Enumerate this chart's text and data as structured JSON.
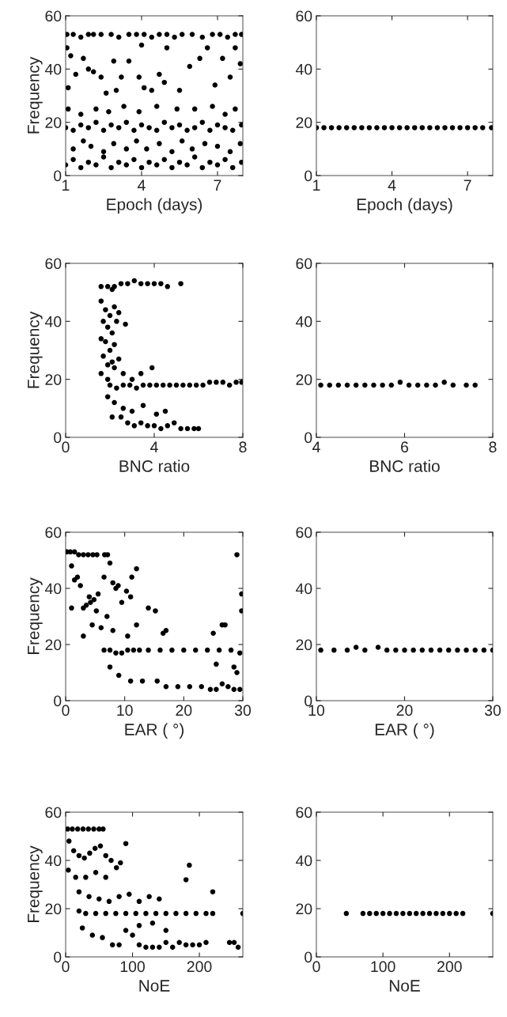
{
  "chart_data": [
    {
      "type": "scatter",
      "xlabel": "Epoch (days)",
      "ylabel": "Frequency",
      "xlim": [
        1,
        8
      ],
      "xticks": [
        1,
        4,
        7
      ],
      "ylim": [
        0,
        60
      ],
      "yticks": [
        0,
        20,
        40,
        60
      ],
      "marker": "circle",
      "series": [
        {
          "color": "#000000",
          "x": [
            1.05,
            1.3,
            1.6,
            1.9,
            2.1,
            2.4,
            2.8,
            3.1,
            3.5,
            3.8,
            4.1,
            4.4,
            4.7,
            5.0,
            5.3,
            5.6,
            6.0,
            6.4,
            6.8,
            7.1,
            7.4,
            7.7,
            7.95,
            1.05,
            1.1,
            1.2,
            1.4,
            1.7,
            1.9,
            2.1,
            2.4,
            2.6,
            2.9,
            3.2,
            3.5,
            3.9,
            4.0,
            4.1,
            4.4,
            4.7,
            4.9,
            5.0,
            5.5,
            5.9,
            6.3,
            6.6,
            6.9,
            7.2,
            7.5,
            7.7,
            7.9,
            3.0,
            1.1,
            1.6,
            2.2,
            2.7,
            3.3,
            3.9,
            4.6,
            5.4,
            6.1,
            6.8,
            7.3,
            7.7,
            1.0,
            1.3,
            1.6,
            1.9,
            2.2,
            2.5,
            2.8,
            3.1,
            3.4,
            3.7,
            4.0,
            4.3,
            4.6,
            4.9,
            5.2,
            5.5,
            5.8,
            6.1,
            6.4,
            6.7,
            7.0,
            7.3,
            7.6,
            7.95,
            1.3,
            1.7,
            2.0,
            2.5,
            2.9,
            3.4,
            3.8,
            4.2,
            4.7,
            5.2,
            5.6,
            6.0,
            6.5,
            7.0,
            7.5,
            7.9,
            1.0,
            1.3,
            1.6,
            1.9,
            2.2,
            2.5,
            2.8,
            3.1,
            3.4,
            3.7,
            4.0,
            4.3,
            4.6,
            4.9,
            5.2,
            5.5,
            5.8,
            6.1,
            6.4,
            6.7,
            7.0,
            7.3,
            7.6,
            7.95
          ],
          "values": [
            53,
            53,
            52,
            53,
            53,
            53,
            53,
            52,
            53,
            53,
            53,
            52,
            53,
            53,
            52,
            53,
            53,
            52,
            53,
            53,
            52,
            53,
            53,
            48,
            33,
            45,
            38,
            44,
            40,
            39,
            37,
            31,
            43,
            37,
            43,
            37,
            49,
            33,
            32,
            38,
            35,
            48,
            32,
            41,
            44,
            48,
            34,
            44,
            37,
            48,
            42,
            32,
            25,
            23,
            25,
            24,
            26,
            24,
            26,
            25,
            25,
            26,
            23,
            25,
            18,
            17,
            19,
            18,
            20,
            17,
            19,
            18,
            20,
            17,
            19,
            18,
            17,
            20,
            18,
            19,
            17,
            18,
            20,
            17,
            19,
            18,
            17,
            19,
            10,
            13,
            11,
            9,
            12,
            10,
            13,
            10,
            12,
            9,
            13,
            10,
            12,
            11,
            9,
            12,
            4,
            6,
            3,
            5,
            4,
            7,
            3,
            5,
            4,
            6,
            3,
            5,
            4,
            6,
            3,
            5,
            4,
            7,
            3,
            5,
            4,
            6,
            3,
            5
          ]
        }
      ]
    },
    {
      "type": "scatter",
      "xlabel": "Epoch (days)",
      "xlim": [
        1,
        8
      ],
      "xticks": [
        1,
        4,
        7
      ],
      "ylim": [
        0,
        60
      ],
      "yticks": [
        0,
        20,
        40,
        60
      ],
      "marker": "circle",
      "series": [
        {
          "color": "#000000",
          "x": [
            1.0,
            1.3,
            1.6,
            1.9,
            2.2,
            2.5,
            2.8,
            3.1,
            3.4,
            3.7,
            4.0,
            4.3,
            4.6,
            4.9,
            5.2,
            5.5,
            5.8,
            6.1,
            6.4,
            6.7,
            7.0,
            7.3,
            7.6,
            7.95
          ],
          "values": [
            18,
            18,
            18,
            18,
            18,
            18,
            18,
            18,
            18,
            18,
            18,
            18,
            18,
            18,
            18,
            18,
            18,
            18,
            18,
            18,
            18,
            18,
            18,
            18
          ]
        }
      ]
    },
    {
      "type": "scatter",
      "xlabel": "BNC ratio",
      "ylabel": "Frequency",
      "xlim": [
        0,
        8
      ],
      "xticks": [
        0,
        4,
        8
      ],
      "ylim": [
        0,
        60
      ],
      "yticks": [
        0,
        20,
        40,
        60
      ],
      "marker": "circle",
      "series": [
        {
          "color": "#000000",
          "x": [
            2.2,
            2.5,
            2.8,
            3.1,
            3.4,
            3.7,
            4.0,
            4.3,
            4.6,
            5.2,
            1.6,
            1.9,
            2.1,
            1.6,
            1.8,
            2.0,
            2.2,
            2.4,
            1.7,
            1.9,
            2.1,
            2.3,
            2.7,
            1.6,
            1.8,
            2.0,
            2.2,
            1.7,
            1.9,
            2.1,
            2.4,
            1.6,
            1.9,
            2.2,
            2.0,
            2.3,
            2.6,
            2.9,
            3.2,
            3.5,
            3.8,
            4.1,
            4.4,
            4.7,
            5.0,
            5.3,
            5.6,
            5.9,
            6.2,
            6.5,
            6.8,
            7.1,
            7.4,
            7.7,
            7.95,
            2.6,
            3.0,
            3.4,
            3.9,
            1.9,
            2.2,
            2.5,
            2.8,
            3.1,
            3.4,
            3.7,
            4.0,
            4.3,
            4.6,
            4.9,
            5.2,
            5.5,
            5.8,
            6.0,
            2.1,
            2.6,
            3.0,
            3.5,
            4.1,
            4.5
          ],
          "values": [
            52,
            53,
            53,
            54,
            53,
            53,
            53,
            53,
            52,
            53,
            52,
            52,
            51,
            47,
            44,
            42,
            45,
            43,
            40,
            38,
            36,
            40,
            39,
            34,
            33,
            30,
            32,
            28,
            25,
            26,
            27,
            22,
            20,
            24,
            18,
            17,
            18,
            18,
            17,
            18,
            18,
            18,
            18,
            18,
            18,
            18,
            18,
            18,
            18,
            19,
            19,
            19,
            18,
            19,
            19,
            22,
            20,
            22,
            24,
            14,
            12,
            7,
            5,
            4,
            5,
            4,
            4,
            3,
            4,
            5,
            3,
            3,
            3,
            3,
            7,
            10,
            9,
            11,
            8,
            9
          ]
        }
      ]
    },
    {
      "type": "scatter",
      "xlabel": "BNC ratio",
      "xlim": [
        4,
        8
      ],
      "xticks": [
        4,
        6,
        8
      ],
      "ylim": [
        0,
        60
      ],
      "yticks": [
        0,
        20,
        40,
        60
      ],
      "marker": "circle",
      "series": [
        {
          "color": "#000000",
          "x": [
            4.1,
            4.3,
            4.5,
            4.7,
            4.9,
            5.1,
            5.3,
            5.5,
            5.7,
            5.9,
            6.1,
            6.3,
            6.5,
            6.7,
            6.9,
            7.1,
            7.4,
            7.6
          ],
          "values": [
            18,
            18,
            18,
            18,
            18,
            18,
            18,
            18,
            18,
            19,
            18,
            18,
            18,
            18,
            19,
            18,
            18,
            18
          ]
        }
      ]
    },
    {
      "type": "scatter",
      "xlabel": "EAR ( °)",
      "ylabel": "Frequency",
      "xlim": [
        0,
        30
      ],
      "xticks": [
        0,
        10,
        20,
        30
      ],
      "ylim": [
        0,
        60
      ],
      "yticks": [
        0,
        20,
        40,
        60
      ],
      "marker": "circle",
      "series": [
        {
          "color": "#000000",
          "x": [
            0.2,
            0.8,
            1.5,
            2.2,
            3.0,
            3.8,
            4.6,
            5.3,
            6.6,
            7.1,
            1.0,
            1.5,
            2.0,
            2.5,
            3.5,
            4.2,
            4.8,
            5.5,
            6.5,
            7.5,
            8.0,
            8.9,
            9.5,
            10.3,
            11.2,
            12.0,
            1.0,
            3.0,
            4.0,
            5.2,
            7.0,
            8.5,
            11.0,
            14.0,
            15.2,
            3.0,
            4.5,
            6.0,
            8.0,
            10.5,
            12.0,
            16.5,
            17.0,
            25.0,
            26.5,
            27.0,
            29.0,
            29.8,
            29.8,
            6.5,
            7.5,
            8.5,
            9.5,
            10.5,
            11.5,
            12.5,
            14.0,
            16.0,
            18.0,
            20.0,
            22.0,
            24.0,
            26.0,
            28.0,
            29.5,
            7.5,
            9.0,
            11.0,
            13.0,
            15.5,
            17.0,
            19.0,
            21.0,
            23.0,
            24.5,
            25.5,
            26.5,
            27.5,
            28.5,
            29.5,
            29.0,
            25.5,
            28.5
          ],
          "values": [
            53,
            53,
            53,
            52,
            52,
            52,
            52,
            52,
            52,
            52,
            48,
            43,
            44,
            41,
            34,
            35,
            36,
            38,
            44,
            49,
            42,
            41,
            35,
            39,
            44,
            47,
            33,
            33,
            37,
            32,
            30,
            40,
            37,
            33,
            32,
            23,
            27,
            26,
            25,
            23,
            27,
            24,
            25,
            24,
            27,
            27,
            52,
            38,
            32,
            18,
            18,
            17,
            17,
            18,
            18,
            18,
            18,
            18,
            18,
            18,
            18,
            18,
            18,
            18,
            17,
            12,
            9,
            7,
            7,
            7,
            5,
            5,
            5,
            5,
            4,
            4,
            6,
            5,
            4,
            4,
            10,
            13,
            12
          ]
        }
      ]
    },
    {
      "type": "scatter",
      "xlabel": "EAR ( °)",
      "xlim": [
        10,
        30
      ],
      "xticks": [
        10,
        20,
        30
      ],
      "ylim": [
        0,
        60
      ],
      "yticks": [
        0,
        20,
        40,
        60
      ],
      "marker": "circle",
      "series": [
        {
          "color": "#000000",
          "x": [
            10.5,
            12.0,
            13.5,
            14.5,
            15.5,
            17.0,
            18.0,
            19.0,
            20.0,
            21.0,
            22.0,
            23.0,
            24.0,
            25.0,
            26.0,
            27.0,
            28.0,
            29.0,
            30.0
          ],
          "values": [
            18,
            18,
            18,
            19,
            18,
            19,
            18,
            18,
            18,
            18,
            18,
            18,
            18,
            18,
            18,
            18,
            18,
            18,
            18
          ]
        }
      ]
    },
    {
      "type": "scatter",
      "xlabel": "NoE",
      "ylabel": "Frequency",
      "xlim": [
        0,
        265
      ],
      "xticks": [
        0,
        100,
        200
      ],
      "ylim": [
        0,
        60
      ],
      "yticks": [
        0,
        20,
        40,
        60
      ],
      "marker": "circle",
      "series": [
        {
          "color": "#000000",
          "x": [
            3,
            10,
            18,
            26,
            34,
            42,
            50,
            56,
            5,
            12,
            20,
            28,
            36,
            44,
            52,
            60,
            68,
            76,
            90,
            82,
            4,
            15,
            30,
            45,
            60,
            20,
            35,
            50,
            65,
            80,
            95,
            110,
            125,
            140,
            20,
            30,
            45,
            60,
            75,
            90,
            105,
            120,
            135,
            150,
            165,
            180,
            195,
            210,
            220,
            90,
            100,
            110,
            120,
            130,
            140,
            150,
            160,
            170,
            180,
            190,
            200,
            25,
            40,
            55,
            70,
            80,
            110,
            130,
            150,
            185,
            180,
            220,
            265,
            245,
            252,
            258,
            210
          ],
          "values": [
            53,
            53,
            53,
            53,
            53,
            53,
            53,
            53,
            48,
            44,
            42,
            41,
            43,
            45,
            46,
            42,
            40,
            37,
            47,
            39,
            36,
            33,
            33,
            35,
            33,
            27,
            25,
            24,
            23,
            25,
            26,
            23,
            25,
            24,
            19,
            18,
            18,
            18,
            18,
            18,
            18,
            18,
            18,
            18,
            18,
            18,
            18,
            18,
            18,
            11,
            9,
            5,
            4,
            4,
            4,
            6,
            4,
            6,
            5,
            5,
            5,
            12,
            9,
            8,
            5,
            5,
            13,
            14,
            11,
            38,
            32,
            27,
            18,
            6,
            6,
            4,
            6
          ]
        }
      ]
    },
    {
      "type": "scatter",
      "xlabel": "NoE",
      "xlim": [
        0,
        265
      ],
      "xticks": [
        0,
        100,
        200
      ],
      "ylim": [
        0,
        60
      ],
      "yticks": [
        0,
        20,
        40,
        60
      ],
      "marker": "circle",
      "series": [
        {
          "color": "#000000",
          "x": [
            45,
            70,
            80,
            90,
            100,
            110,
            120,
            130,
            140,
            150,
            160,
            170,
            180,
            190,
            200,
            210,
            220,
            265
          ],
          "values": [
            18,
            18,
            18,
            18,
            18,
            18,
            18,
            18,
            18,
            18,
            18,
            18,
            18,
            18,
            18,
            18,
            18,
            18
          ]
        }
      ]
    }
  ]
}
